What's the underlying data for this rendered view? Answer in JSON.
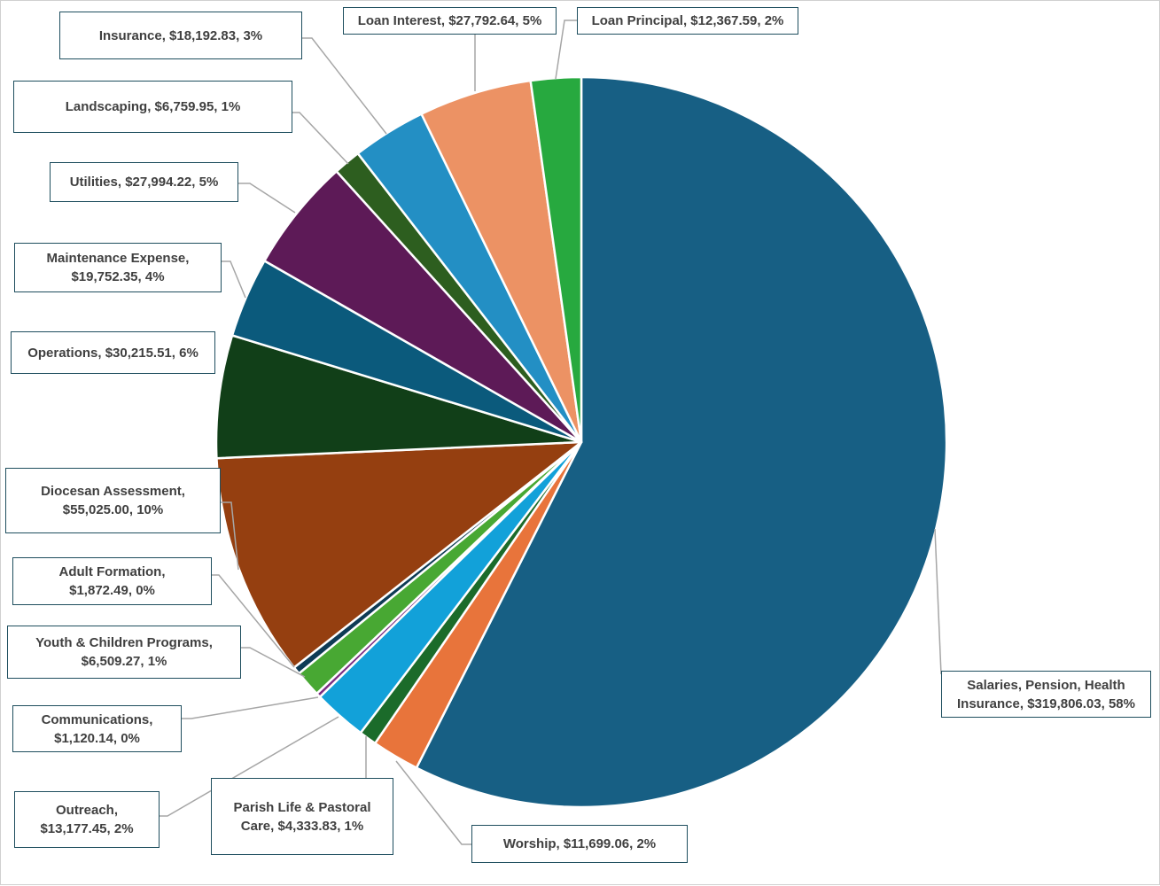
{
  "chart_data": {
    "type": "pie",
    "title": "",
    "total_label": "",
    "slices": [
      {
        "name": "Salaries, Pension, Health Insurance",
        "value": 319806.03,
        "percent": "58%",
        "color": "#175f84",
        "label_line1": "Salaries, Pension, Health",
        "label_line2": "Insurance, $319,806.03, 58%"
      },
      {
        "name": "Worship",
        "value": 11699.06,
        "percent": "2%",
        "color": "#e8743b",
        "label_line1": "Worship, $11,699.06, 2%",
        "label_line2": ""
      },
      {
        "name": "Parish Life & Pastoral Care",
        "value": 4333.83,
        "percent": "1%",
        "color": "#1b6b2a",
        "label_line1": "Parish Life & Pastoral",
        "label_line2": "Care, $4,333.83, 1%"
      },
      {
        "name": "Outreach",
        "value": 13177.45,
        "percent": "2%",
        "color": "#12a1d9",
        "label_line1": "Outreach,",
        "label_line2": "$13,177.45, 2%"
      },
      {
        "name": "Communications",
        "value": 1120.14,
        "percent": "0%",
        "color": "#7b2c83",
        "label_line1": "Communications,",
        "label_line2": "$1,120.14, 0%"
      },
      {
        "name": "Youth & Children Programs",
        "value": 6509.27,
        "percent": "1%",
        "color": "#48a833",
        "label_line1": "Youth & Children Programs,",
        "label_line2": "$6,509.27, 1%"
      },
      {
        "name": "Adult Formation",
        "value": 1872.49,
        "percent": "0%",
        "color": "#0e3b55",
        "label_line1": "Adult Formation,",
        "label_line2": "$1,872.49, 0%"
      },
      {
        "name": "Diocesan Assessment",
        "value": 55025.0,
        "percent": "10%",
        "color": "#953f10",
        "label_line1": "Diocesan Assessment,",
        "label_line2": "$55,025.00, 10%"
      },
      {
        "name": "Operations",
        "value": 30215.51,
        "percent": "6%",
        "color": "#113f18",
        "label_line1": "Operations, $30,215.51, 6%",
        "label_line2": ""
      },
      {
        "name": "Maintenance Expense",
        "value": 19752.35,
        "percent": "4%",
        "color": "#0b5a7c",
        "label_line1": "Maintenance Expense,",
        "label_line2": "$19,752.35, 4%"
      },
      {
        "name": "Utilities",
        "value": 27994.22,
        "percent": "5%",
        "color": "#5d1a57",
        "label_line1": "Utilities, $27,994.22, 5%",
        "label_line2": ""
      },
      {
        "name": "Landscaping",
        "value": 6759.95,
        "percent": "1%",
        "color": "#2d5e1f",
        "label_line1": "Landscaping, $6,759.95, 1%",
        "label_line2": ""
      },
      {
        "name": "Insurance",
        "value": 18192.83,
        "percent": "3%",
        "color": "#238fc4",
        "label_line1": "Insurance, $18,192.83, 3%",
        "label_line2": ""
      },
      {
        "name": "Loan Interest",
        "value": 27792.64,
        "percent": "5%",
        "color": "#ec9264",
        "label_line1": "Loan Interest, $27,792.64, 5%",
        "label_line2": ""
      },
      {
        "name": "Loan Principal",
        "value": 12367.59,
        "percent": "2%",
        "color": "#27a93f",
        "label_line1": "Loan Principal, $12,367.59, 2%",
        "label_line2": ""
      }
    ],
    "start_angle": "12 o'clock",
    "direction": "clockwise",
    "legend": "none",
    "data_labels": "callout boxes with leader lines"
  }
}
